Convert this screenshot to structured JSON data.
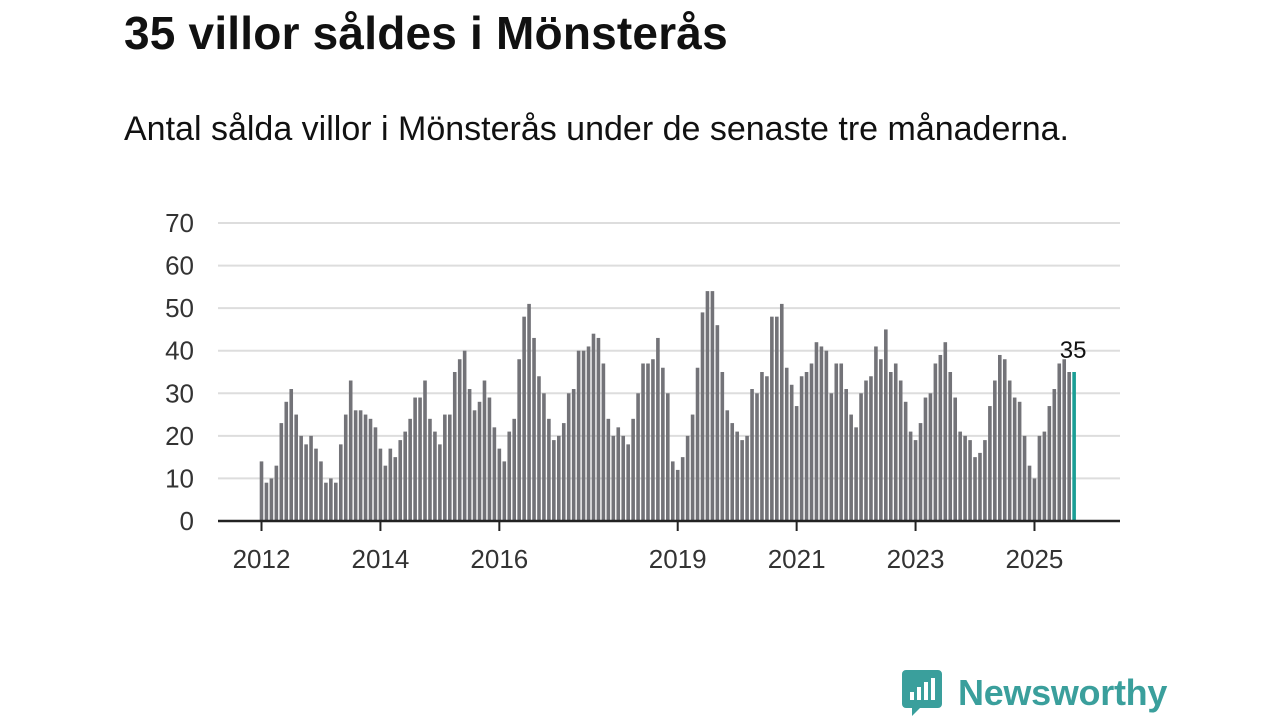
{
  "headline": "35 villor såldes i Mönsterås",
  "subheading": "Antal sålda villor i Mönsterås under de senaste tre månaderna.",
  "brand": {
    "name": "Newsworthy",
    "icon": "newsworthy-logo-icon"
  },
  "colors": {
    "bar": "#737378",
    "highlight": "#1a9e95",
    "brand": "#3a9f9c",
    "grid": "#dddddd",
    "axis": "#222222"
  },
  "chart_data": {
    "type": "bar",
    "title": "35 villor såldes i Mönsterås",
    "xlabel": "",
    "ylabel": "",
    "ylim": [
      0,
      70
    ],
    "y_ticks": [
      "0",
      "10",
      "20",
      "30",
      "40",
      "50",
      "60",
      "70"
    ],
    "x_start": "2012-01",
    "x_tick_labels": [
      {
        "label": "2012",
        "index": 0
      },
      {
        "label": "2014",
        "index": 24
      },
      {
        "label": "2016",
        "index": 48
      },
      {
        "label": "2019",
        "index": 84
      },
      {
        "label": "2021",
        "index": 108
      },
      {
        "label": "2023",
        "index": 132
      },
      {
        "label": "2025",
        "index": 156
      }
    ],
    "values": [
      14,
      9,
      10,
      13,
      23,
      28,
      31,
      25,
      20,
      18,
      20,
      17,
      14,
      9,
      10,
      9,
      18,
      25,
      33,
      26,
      26,
      25,
      24,
      22,
      17,
      13,
      17,
      15,
      19,
      21,
      24,
      29,
      29,
      33,
      24,
      21,
      18,
      25,
      25,
      35,
      38,
      40,
      31,
      26,
      28,
      33,
      29,
      22,
      17,
      14,
      21,
      24,
      38,
      48,
      51,
      43,
      34,
      30,
      24,
      19,
      20,
      23,
      30,
      31,
      40,
      40,
      41,
      44,
      43,
      37,
      24,
      20,
      22,
      20,
      18,
      24,
      30,
      37,
      37,
      38,
      43,
      36,
      30,
      14,
      12,
      15,
      20,
      25,
      36,
      49,
      54,
      54,
      46,
      35,
      26,
      23,
      21,
      19,
      20,
      31,
      30,
      35,
      34,
      48,
      48,
      51,
      36,
      32,
      27,
      34,
      35,
      37,
      42,
      41,
      40,
      30,
      37,
      37,
      31,
      25,
      22,
      30,
      33,
      34,
      41,
      38,
      45,
      35,
      37,
      33,
      28,
      21,
      19,
      23,
      29,
      30,
      37,
      39,
      42,
      35,
      29,
      21,
      20,
      19,
      15,
      16,
      19,
      27,
      33,
      39,
      38,
      33,
      29,
      28,
      20,
      13,
      10,
      20,
      21,
      27,
      31,
      37,
      38,
      35,
      35
    ],
    "highlight_index": 164,
    "highlight_label": "35"
  }
}
